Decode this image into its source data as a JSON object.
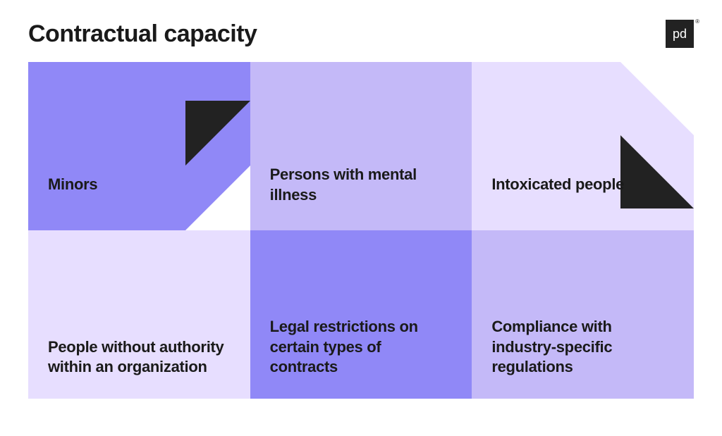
{
  "title": "Contractual capacity",
  "logo": {
    "text": "pd",
    "background": "#222222",
    "color": "#ffffff"
  },
  "cells": [
    {
      "label": "Minors",
      "background_color": "#9088f7",
      "has_fold": "bottom-right-inner"
    },
    {
      "label": "Persons with mental illness",
      "background_color": "#c4b9f8"
    },
    {
      "label": "Intoxicated people",
      "background_color": "#e7deff",
      "has_fold": "top-right-outer"
    },
    {
      "label": "People without authority within an organization",
      "background_color": "#e7deff"
    },
    {
      "label": "Legal restrictions on certain types of contracts",
      "background_color": "#9088f7"
    },
    {
      "label": "Compliance with industry-specific regulations",
      "background_color": "#c4b9f8"
    }
  ],
  "styling": {
    "title_fontsize": 34,
    "title_fontweight": 800,
    "title_color": "#1a1a1a",
    "cell_label_fontsize": 22,
    "cell_label_fontweight": 800,
    "cell_label_color": "#1a1a1a",
    "fold_color": "#222222",
    "page_background": "#ffffff",
    "grid_columns": 3,
    "grid_rows": 2
  }
}
